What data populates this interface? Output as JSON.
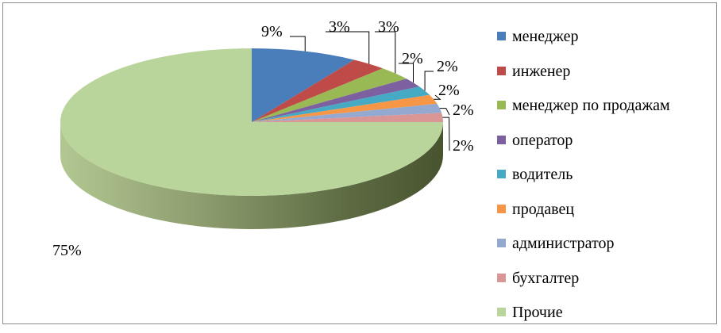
{
  "chart_data": {
    "type": "pie",
    "style": "3d",
    "categories": [
      "менеджер",
      "инженер",
      "менеджер по продажам",
      "оператор",
      "водитель",
      "продавец",
      "администратор",
      "бухгалтер",
      "Прочие"
    ],
    "values": [
      9,
      3,
      3,
      2,
      2,
      2,
      2,
      2,
      75
    ],
    "data_labels": [
      "9%",
      "3%",
      "3%",
      "2%",
      "2%",
      "2%",
      "2%",
      "2%",
      "75%"
    ],
    "colors": [
      "#4a7ebb",
      "#be4b48",
      "#98b954",
      "#7d60a0",
      "#46aac5",
      "#f79646",
      "#93a9cf",
      "#d99694",
      "#bad59c"
    ],
    "legend_position": "right",
    "title": ""
  }
}
